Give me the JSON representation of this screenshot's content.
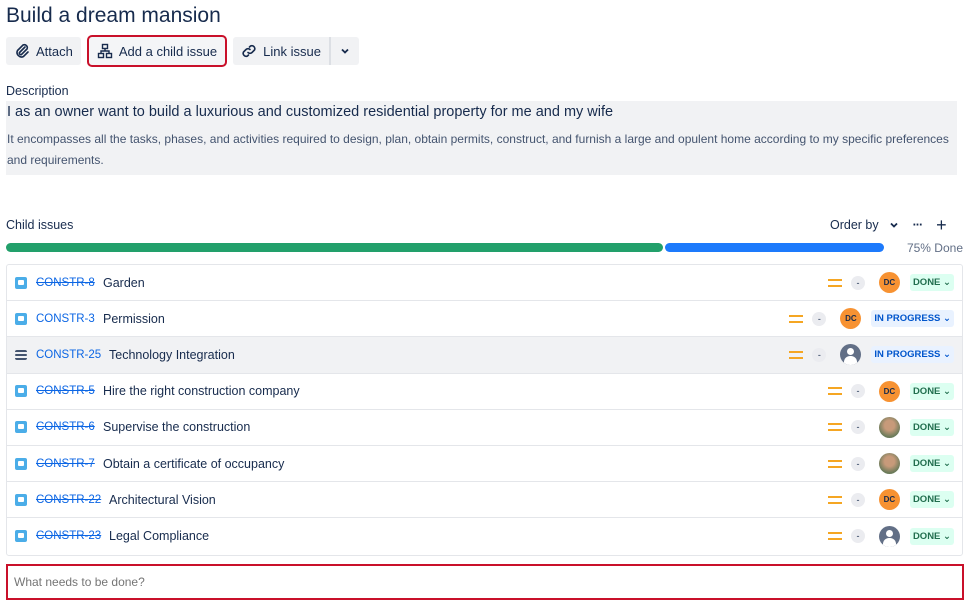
{
  "title": "Build a dream mansion",
  "toolbar": {
    "attach": "Attach",
    "add_child": "Add a child issue",
    "link": "Link issue"
  },
  "description": {
    "label": "Description",
    "heading": "I as an owner want to build a luxurious and customized residential property for me and my wife",
    "body": "It encompasses all the tasks, phases, and activities required to design, plan, obtain permits, construct, and furnish a large and opulent home according to my specific preferences and requirements."
  },
  "child_issues": {
    "label": "Child issues",
    "order_by": "Order by",
    "progress_percent": 75,
    "progress_text": "75% Done",
    "colors": {
      "done": "#22a06b",
      "in_progress": "#1d7afc"
    },
    "items": [
      {
        "key": "CONSTR-8",
        "summary": "Garden",
        "done": true,
        "type": "story",
        "priority": "medium",
        "estimate": "-",
        "assignee": "DC",
        "status": "DONE"
      },
      {
        "key": "CONSTR-3",
        "summary": "Permission",
        "done": false,
        "type": "story",
        "priority": "medium",
        "estimate": "-",
        "assignee": "DC",
        "status": "IN PROGRESS"
      },
      {
        "key": "CONSTR-25",
        "summary": "Technology Integration",
        "done": false,
        "type": "epic",
        "priority": "medium",
        "estimate": "-",
        "assignee": "",
        "status": "IN PROGRESS"
      },
      {
        "key": "CONSTR-5",
        "summary": "Hire the right construction company",
        "done": true,
        "type": "story",
        "priority": "medium",
        "estimate": "-",
        "assignee": "DC",
        "status": "DONE"
      },
      {
        "key": "CONSTR-6",
        "summary": "Supervise the construction",
        "done": true,
        "type": "story",
        "priority": "medium",
        "estimate": "-",
        "assignee": "photo",
        "status": "DONE"
      },
      {
        "key": "CONSTR-7",
        "summary": "Obtain a certificate of occupancy",
        "done": true,
        "type": "story",
        "priority": "medium",
        "estimate": "-",
        "assignee": "photo",
        "status": "DONE"
      },
      {
        "key": "CONSTR-22",
        "summary": "Architectural Vision",
        "done": true,
        "type": "story",
        "priority": "medium",
        "estimate": "-",
        "assignee": "DC",
        "status": "DONE"
      },
      {
        "key": "CONSTR-23",
        "summary": "Legal Compliance",
        "done": true,
        "type": "story",
        "priority": "medium",
        "estimate": "-",
        "assignee": "",
        "status": "DONE"
      }
    ]
  },
  "new_issue": {
    "placeholder": "What needs to be done?"
  }
}
